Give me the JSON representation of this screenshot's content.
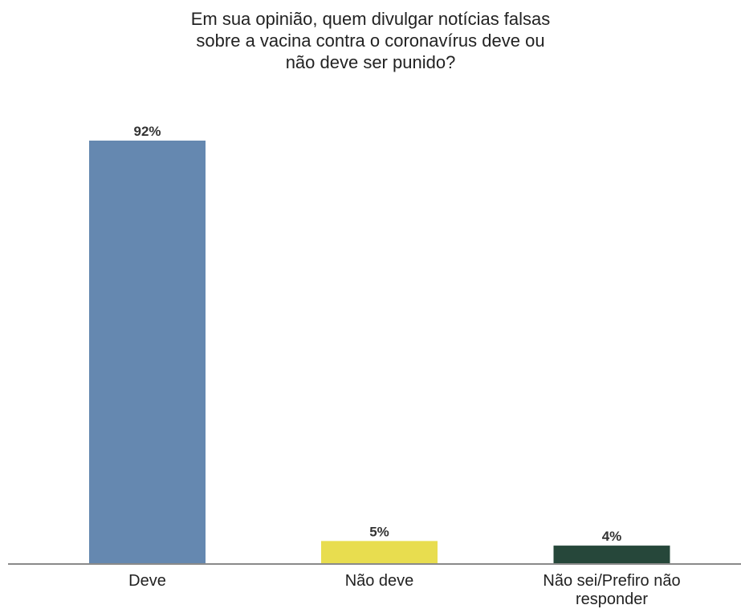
{
  "chart_data": {
    "type": "bar",
    "title": "Em sua opinião, quem divulgar notícias falsas\nsobre a vacina contra o coronavírus deve ou\nnão deve ser punido?",
    "categories": [
      "Deve",
      "Não deve",
      "Não sei/Prefiro não responder"
    ],
    "category_lines": [
      [
        "Deve"
      ],
      [
        "Não deve"
      ],
      [
        "Não sei/Prefiro não",
        "responder"
      ]
    ],
    "values": [
      92,
      5,
      4
    ],
    "data_labels": [
      "92%",
      "5%",
      "4%"
    ],
    "colors": [
      "#6588b0",
      "#e8dd4f",
      "#26473a"
    ],
    "xlabel": "",
    "ylabel": "",
    "ylim": [
      0,
      100
    ],
    "grid": false,
    "legend": "none"
  }
}
